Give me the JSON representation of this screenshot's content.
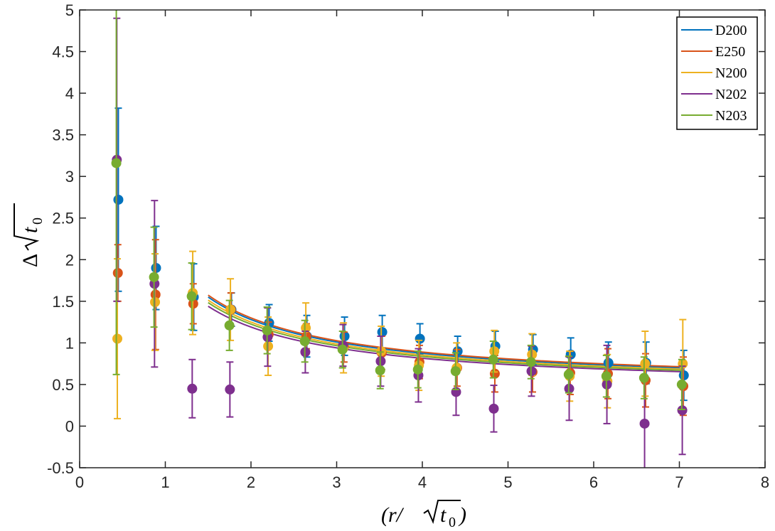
{
  "chart_data": {
    "type": "scatter",
    "title": "",
    "xlabel_parts": {
      "open": "(r/",
      "radicand": "t",
      "sub": "0",
      "close": ")"
    },
    "ylabel_parts": {
      "prefix": "Δ",
      "radicand": "t",
      "sub": "0"
    },
    "xlim": [
      0,
      8
    ],
    "ylim": [
      -0.5,
      5
    ],
    "xticks": [
      0,
      1,
      2,
      3,
      4,
      5,
      6,
      7,
      8
    ],
    "xtick_labels": [
      "0",
      "1",
      "2",
      "3",
      "4",
      "5",
      "6",
      "7",
      "8"
    ],
    "yticks": [
      -0.5,
      0,
      0.5,
      1,
      1.5,
      2,
      2.5,
      3,
      3.5,
      4,
      4.5,
      5
    ],
    "ytick_labels": [
      "-0.5",
      "0",
      "0.5",
      "1",
      "1.5",
      "2",
      "2.5",
      "3",
      "3.5",
      "4",
      "4.5",
      "5"
    ],
    "grid": false,
    "legend_position": "top-right",
    "x": [
      0.44,
      0.88,
      1.32,
      1.76,
      2.2,
      2.64,
      3.08,
      3.52,
      3.96,
      4.4,
      4.84,
      5.28,
      5.72,
      6.16,
      6.6,
      7.04
    ],
    "series": [
      {
        "name": "D200",
        "color": "#0072BD",
        "y": [
          2.72,
          1.9,
          1.55,
          1.4,
          1.24,
          1.08,
          1.08,
          1.13,
          1.05,
          0.9,
          0.96,
          0.92,
          0.86,
          0.76,
          0.76,
          0.61
        ],
        "err": [
          1.1,
          0.5,
          0.4,
          0.2,
          0.22,
          0.25,
          0.23,
          0.2,
          0.18,
          0.18,
          0.18,
          0.18,
          0.2,
          0.25,
          0.25,
          0.3
        ],
        "fit": {
          "a": 1.62,
          "c": 0.47,
          "x_start": 1.5,
          "x_end": 7.05
        }
      },
      {
        "name": "E250",
        "color": "#D95319",
        "y": [
          1.84,
          1.58,
          1.47,
          1.4,
          1.1,
          1.08,
          0.95,
          0.88,
          0.77,
          0.7,
          0.63,
          0.65,
          0.64,
          0.63,
          0.55,
          0.48
        ],
        "err": [
          0.34,
          0.66,
          0.24,
          0.2,
          0.15,
          0.15,
          0.18,
          0.2,
          0.2,
          0.22,
          0.22,
          0.24,
          0.26,
          0.3,
          0.32,
          0.35
        ],
        "fit": {
          "a": 1.64,
          "c": 0.48,
          "x_start": 1.5,
          "x_end": 7.05
        }
      },
      {
        "name": "N200",
        "color": "#EDB120",
        "y": [
          1.05,
          1.49,
          1.6,
          1.4,
          0.96,
          1.18,
          0.94,
          0.9,
          0.73,
          0.7,
          0.9,
          0.86,
          0.6,
          0.54,
          0.75,
          0.75
        ],
        "err": [
          0.96,
          0.58,
          0.5,
          0.37,
          0.35,
          0.3,
          0.3,
          0.3,
          0.3,
          0.3,
          0.25,
          0.25,
          0.3,
          0.32,
          0.39,
          0.53
        ],
        "fit": {
          "a": 1.58,
          "c": 0.46,
          "x_start": 1.5,
          "x_end": 7.05
        }
      },
      {
        "name": "N202",
        "color": "#7E2F8E",
        "y": [
          3.2,
          1.71,
          0.45,
          0.44,
          1.07,
          0.89,
          0.97,
          0.78,
          0.61,
          0.41,
          0.21,
          0.66,
          0.45,
          0.5,
          0.03,
          0.19
        ],
        "err": [
          1.7,
          1.0,
          0.35,
          0.33,
          0.35,
          0.25,
          0.25,
          0.3,
          0.32,
          0.28,
          0.28,
          0.3,
          0.38,
          0.47,
          0.54,
          0.53
        ],
        "fit": {
          "a": 1.5,
          "c": 0.44,
          "x_start": 1.5,
          "x_end": 7.05
        }
      },
      {
        "name": "N203",
        "color": "#77AC30",
        "y": [
          3.16,
          1.79,
          1.56,
          1.21,
          1.15,
          1.02,
          0.92,
          0.67,
          0.68,
          0.66,
          0.8,
          0.77,
          0.62,
          0.6,
          0.58,
          0.5
        ],
        "err": [
          2.54,
          0.6,
          0.4,
          0.3,
          0.28,
          0.25,
          0.22,
          0.22,
          0.22,
          0.22,
          0.22,
          0.2,
          0.22,
          0.25,
          0.25,
          0.3
        ],
        "fit": {
          "a": 1.55,
          "c": 0.45,
          "x_start": 1.5,
          "x_end": 7.05
        }
      }
    ]
  }
}
